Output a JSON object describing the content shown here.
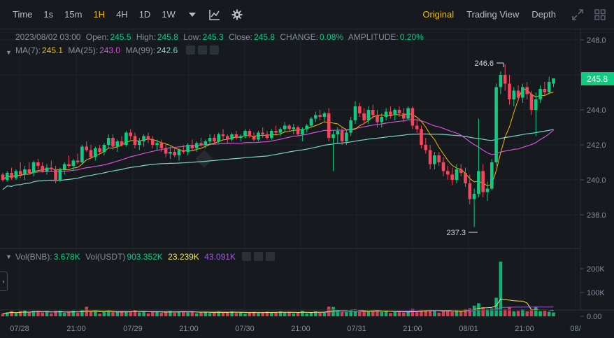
{
  "toolbar": {
    "intervals": [
      "Time",
      "1s",
      "15m",
      "1H",
      "4H",
      "1D",
      "1W"
    ],
    "active_interval": "1H",
    "views": [
      "Original",
      "Trading View",
      "Depth"
    ],
    "active_view": "Original"
  },
  "ohlc": {
    "date": "2023/08/02 03:00",
    "open_label": "Open:",
    "open": "245.5",
    "high_label": "High:",
    "high": "245.8",
    "low_label": "Low:",
    "low": "245.3",
    "close_label": "Close:",
    "close": "245.8",
    "change_label": "CHANGE:",
    "change": "0.08%",
    "amplitude_label": "AMPLITUDE:",
    "amplitude": "0.20%"
  },
  "ma": {
    "ma7_label": "MA(7):",
    "ma7": "245.1",
    "ma25_label": "MA(25):",
    "ma25": "243.0",
    "ma99_label": "MA(99):",
    "ma99": "242.6"
  },
  "vol": {
    "bnb_label": "Vol(BNB):",
    "bnb": "3.678K",
    "usdt_label": "Vol(USDT)",
    "usdt": "903.352K",
    "ma1": "23.239K",
    "ma2": "43.091K"
  },
  "price_axis": [
    "248.0",
    "246.0",
    "244.0",
    "242.0",
    "240.0",
    "238.0"
  ],
  "volume_axis": [
    "200K",
    "100K",
    "0.00"
  ],
  "time_axis": [
    "07/28",
    "21:00",
    "07/29",
    "21:00",
    "07/30",
    "21:00",
    "07/31",
    "21:00",
    "08/01",
    "21:00",
    "08/"
  ],
  "current_price": "245.8",
  "high_marker": "246.6",
  "low_marker": "237.3",
  "colors": {
    "up": "#0ecb81",
    "down": "#f6465d",
    "ma7": "#f0b90b",
    "ma25": "#d251d5",
    "ma99": "#7bd1c6",
    "accent": "#f0b90b"
  },
  "chart_data": {
    "type": "candlestick",
    "ylim": [
      236.6,
      248.6
    ],
    "candles": [
      [
        240.3,
        240.4,
        239.9,
        240.0
      ],
      [
        240.0,
        240.5,
        239.9,
        240.4
      ],
      [
        240.4,
        240.7,
        240.0,
        240.1
      ],
      [
        240.1,
        240.6,
        240.0,
        240.5
      ],
      [
        240.5,
        241.0,
        240.1,
        240.3
      ],
      [
        240.3,
        240.8,
        240.0,
        240.6
      ],
      [
        240.6,
        241.0,
        240.3,
        240.4
      ],
      [
        240.4,
        241.1,
        240.2,
        241.0
      ],
      [
        241.0,
        241.2,
        240.6,
        240.8
      ],
      [
        240.8,
        241.0,
        240.4,
        240.5
      ],
      [
        240.5,
        240.9,
        240.3,
        240.7
      ],
      [
        240.7,
        241.1,
        240.5,
        240.6
      ],
      [
        240.6,
        240.8,
        239.8,
        240.0
      ],
      [
        240.0,
        240.7,
        239.9,
        240.6
      ],
      [
        240.6,
        241.0,
        240.3,
        240.9
      ],
      [
        240.9,
        241.4,
        240.7,
        240.8
      ],
      [
        240.8,
        241.2,
        240.5,
        241.1
      ],
      [
        241.1,
        241.5,
        240.9,
        241.0
      ],
      [
        241.0,
        242.0,
        240.9,
        241.9
      ],
      [
        241.9,
        242.2,
        241.6,
        241.7
      ],
      [
        241.7,
        242.0,
        241.2,
        241.3
      ],
      [
        241.3,
        241.9,
        241.1,
        241.8
      ],
      [
        241.8,
        242.0,
        241.5,
        241.6
      ],
      [
        241.6,
        242.1,
        241.4,
        242.0
      ],
      [
        242.0,
        242.6,
        241.8,
        242.4
      ],
      [
        242.4,
        242.6,
        241.7,
        241.9
      ],
      [
        241.9,
        242.3,
        241.6,
        242.2
      ],
      [
        242.2,
        242.5,
        241.9,
        242.0
      ],
      [
        242.0,
        242.8,
        241.9,
        242.7
      ],
      [
        242.7,
        242.9,
        242.3,
        242.5
      ],
      [
        242.5,
        242.7,
        241.8,
        242.0
      ],
      [
        242.0,
        242.4,
        241.7,
        242.2
      ],
      [
        242.2,
        242.6,
        241.9,
        242.5
      ],
      [
        242.5,
        242.7,
        242.1,
        242.3
      ],
      [
        242.3,
        242.5,
        241.8,
        242.0
      ],
      [
        242.0,
        242.3,
        241.7,
        242.1
      ],
      [
        242.1,
        242.3,
        241.6,
        241.8
      ],
      [
        241.8,
        242.1,
        241.3,
        241.5
      ],
      [
        241.5,
        241.9,
        241.2,
        241.6
      ],
      [
        241.6,
        241.9,
        241.3,
        241.4
      ],
      [
        241.4,
        241.8,
        241.1,
        241.7
      ],
      [
        241.7,
        242.0,
        241.5,
        241.6
      ],
      [
        241.6,
        242.1,
        241.4,
        242.0
      ],
      [
        242.0,
        242.3,
        241.7,
        241.8
      ],
      [
        241.8,
        242.2,
        241.6,
        242.1
      ],
      [
        242.1,
        242.4,
        241.9,
        242.0
      ],
      [
        242.0,
        242.3,
        241.8,
        242.2
      ],
      [
        242.2,
        242.6,
        242.0,
        242.4
      ],
      [
        242.4,
        242.6,
        242.1,
        242.2
      ],
      [
        242.2,
        242.7,
        242.1,
        242.6
      ],
      [
        242.6,
        242.9,
        242.3,
        242.5
      ],
      [
        242.5,
        242.6,
        242.1,
        242.3
      ],
      [
        242.3,
        242.7,
        242.2,
        242.6
      ],
      [
        242.6,
        242.8,
        242.3,
        242.4
      ],
      [
        242.4,
        242.6,
        242.2,
        242.5
      ],
      [
        242.5,
        242.9,
        242.4,
        242.8
      ],
      [
        242.8,
        242.9,
        242.4,
        242.5
      ],
      [
        242.5,
        242.7,
        242.2,
        242.3
      ],
      [
        242.3,
        242.8,
        242.2,
        242.7
      ],
      [
        242.7,
        243.0,
        242.4,
        242.6
      ],
      [
        242.6,
        242.8,
        242.3,
        242.4
      ],
      [
        242.4,
        242.9,
        242.3,
        242.8
      ],
      [
        242.8,
        243.1,
        242.6,
        242.7
      ],
      [
        242.7,
        243.0,
        242.5,
        242.9
      ],
      [
        242.9,
        243.3,
        242.7,
        243.1
      ],
      [
        243.1,
        243.2,
        242.8,
        242.9
      ],
      [
        242.9,
        243.2,
        242.6,
        243.0
      ],
      [
        243.0,
        243.1,
        242.5,
        242.6
      ],
      [
        242.6,
        243.0,
        242.2,
        242.9
      ],
      [
        242.9,
        243.2,
        242.7,
        243.1
      ],
      [
        243.1,
        243.6,
        243.0,
        243.5
      ],
      [
        243.5,
        243.9,
        243.3,
        243.7
      ],
      [
        243.7,
        244.0,
        243.4,
        243.6
      ],
      [
        243.6,
        243.9,
        243.3,
        243.8
      ],
      [
        243.8,
        244.1,
        242.2,
        242.4
      ],
      [
        242.4,
        242.8,
        240.5,
        242.6
      ],
      [
        242.6,
        243.0,
        242.1,
        242.8
      ],
      [
        242.8,
        243.0,
        242.0,
        242.2
      ],
      [
        242.2,
        242.9,
        242.0,
        242.7
      ],
      [
        242.7,
        243.6,
        242.5,
        243.4
      ],
      [
        243.4,
        244.5,
        243.2,
        244.2
      ],
      [
        244.2,
        244.4,
        243.6,
        243.8
      ],
      [
        243.8,
        244.1,
        243.2,
        243.4
      ],
      [
        243.4,
        244.2,
        243.2,
        244.0
      ],
      [
        244.0,
        244.3,
        243.5,
        243.7
      ],
      [
        243.7,
        244.0,
        243.0,
        243.3
      ],
      [
        243.3,
        243.8,
        243.0,
        243.6
      ],
      [
        243.6,
        244.1,
        243.4,
        243.9
      ],
      [
        243.9,
        244.2,
        243.5,
        243.7
      ],
      [
        243.7,
        244.1,
        243.4,
        244.0
      ],
      [
        244.0,
        244.2,
        243.6,
        243.8
      ],
      [
        243.8,
        244.1,
        243.3,
        243.5
      ],
      [
        243.5,
        244.2,
        243.4,
        244.1
      ],
      [
        244.1,
        244.2,
        242.9,
        243.1
      ],
      [
        243.1,
        243.5,
        242.7,
        242.9
      ],
      [
        242.9,
        243.1,
        241.8,
        242.0
      ],
      [
        242.0,
        242.4,
        241.5,
        241.7
      ],
      [
        241.7,
        242.0,
        240.6,
        240.9
      ],
      [
        240.9,
        241.6,
        240.6,
        241.4
      ],
      [
        241.4,
        241.6,
        240.8,
        241.0
      ],
      [
        241.0,
        241.3,
        240.2,
        240.5
      ],
      [
        240.5,
        240.8,
        240.0,
        240.3
      ],
      [
        240.3,
        240.7,
        239.7,
        240.0
      ],
      [
        240.0,
        240.9,
        239.8,
        240.6
      ],
      [
        240.6,
        240.9,
        240.2,
        240.4
      ],
      [
        240.4,
        240.7,
        239.6,
        239.8
      ],
      [
        239.8,
        240.3,
        238.6,
        238.9
      ],
      [
        238.9,
        239.5,
        237.3,
        239.2
      ],
      [
        239.2,
        243.5,
        239.0,
        240.5
      ],
      [
        240.5,
        240.9,
        239.0,
        239.3
      ],
      [
        239.3,
        239.9,
        238.8,
        239.5
      ],
      [
        239.5,
        241.2,
        239.4,
        241.0
      ],
      [
        241.0,
        245.5,
        240.8,
        245.3
      ],
      [
        245.3,
        246.2,
        244.9,
        246.0
      ],
      [
        246.0,
        246.6,
        245.1,
        245.5
      ],
      [
        245.5,
        246.0,
        244.3,
        244.6
      ],
      [
        244.6,
        245.3,
        244.2,
        245.1
      ],
      [
        245.1,
        245.4,
        244.5,
        244.7
      ],
      [
        244.7,
        245.5,
        244.4,
        245.3
      ],
      [
        245.3,
        245.6,
        244.6,
        244.9
      ],
      [
        244.9,
        245.1,
        243.7,
        244.0
      ],
      [
        244.0,
        245.0,
        242.5,
        244.6
      ],
      [
        244.6,
        245.4,
        244.4,
        245.2
      ],
      [
        245.2,
        245.6,
        244.8,
        245.0
      ],
      [
        245.0,
        245.9,
        244.9,
        245.6
      ],
      [
        245.5,
        245.8,
        245.3,
        245.8
      ]
    ]
  }
}
